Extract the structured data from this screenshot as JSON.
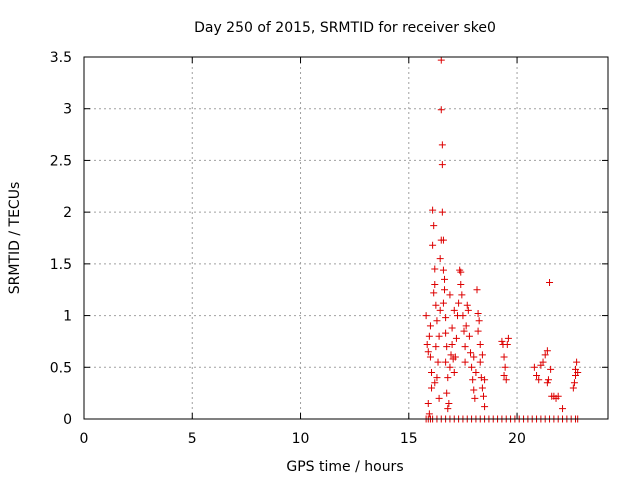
{
  "chart_data": {
    "type": "scatter",
    "title": "Day 250 of 2015, SRMTID for receiver ske0",
    "xlabel": "GPS time / hours",
    "ylabel": "SRMTID / TECUs",
    "xlim": [
      0,
      24.2
    ],
    "ylim": [
      0,
      3.5
    ],
    "grid": true,
    "marker": "+",
    "color": "#dd0000",
    "xticks": [
      {
        "value": 0,
        "label": "0"
      },
      {
        "value": 5,
        "label": "5"
      },
      {
        "value": 10,
        "label": "10"
      },
      {
        "value": 15,
        "label": "15"
      },
      {
        "value": 20,
        "label": "20"
      }
    ],
    "yticks": [
      {
        "value": 0,
        "label": "0"
      },
      {
        "value": 0.5,
        "label": "0.5"
      },
      {
        "value": 1,
        "label": "1"
      },
      {
        "value": 1.5,
        "label": "1.5"
      },
      {
        "value": 2,
        "label": "2"
      },
      {
        "value": 2.5,
        "label": "2.5"
      },
      {
        "value": 3,
        "label": "3"
      },
      {
        "value": 3.5,
        "label": "3.5"
      }
    ],
    "series": [
      {
        "name": "SRMTID",
        "points": [
          [
            15.8,
            1.0
          ],
          [
            15.85,
            0.72
          ],
          [
            15.9,
            0.65
          ],
          [
            15.95,
            0.8
          ],
          [
            16.0,
            0.6
          ],
          [
            16.0,
            0.9
          ],
          [
            16.05,
            0.45
          ],
          [
            16.05,
            0.3
          ],
          [
            15.9,
            0.15
          ],
          [
            15.95,
            0.05
          ],
          [
            16.1,
            2.02
          ],
          [
            16.15,
            1.87
          ],
          [
            16.1,
            1.68
          ],
          [
            16.2,
            1.45
          ],
          [
            16.2,
            1.3
          ],
          [
            16.15,
            1.22
          ],
          [
            16.25,
            1.1
          ],
          [
            16.3,
            0.95
          ],
          [
            16.25,
            0.7
          ],
          [
            16.35,
            0.55
          ],
          [
            16.3,
            0.4
          ],
          [
            16.4,
            0.2
          ],
          [
            16.2,
            0.35
          ],
          [
            16.45,
            1.05
          ],
          [
            16.45,
            1.55
          ],
          [
            16.5,
            3.47
          ],
          [
            16.5,
            2.99
          ],
          [
            16.55,
            2.65
          ],
          [
            16.55,
            2.46
          ],
          [
            16.55,
            2.0
          ],
          [
            16.5,
            1.73
          ],
          [
            16.6,
            1.73
          ],
          [
            16.6,
            1.44
          ],
          [
            16.65,
            1.35
          ],
          [
            16.65,
            1.25
          ],
          [
            16.6,
            1.12
          ],
          [
            16.7,
            0.98
          ],
          [
            16.7,
            0.83
          ],
          [
            16.75,
            0.7
          ],
          [
            16.7,
            0.55
          ],
          [
            16.8,
            0.4
          ],
          [
            16.75,
            0.25
          ],
          [
            16.85,
            0.15
          ],
          [
            16.8,
            0.1
          ],
          [
            16.9,
            0.5
          ],
          [
            16.95,
            0.62
          ],
          [
            17.0,
            0.88
          ],
          [
            17.0,
            0.72
          ],
          [
            17.05,
            0.58
          ],
          [
            17.1,
            0.45
          ],
          [
            17.15,
            0.6
          ],
          [
            17.2,
            0.78
          ],
          [
            17.25,
            1.0
          ],
          [
            17.3,
            1.12
          ],
          [
            17.35,
            1.44
          ],
          [
            17.4,
            1.42
          ],
          [
            17.4,
            1.3
          ],
          [
            17.45,
            1.2
          ],
          [
            17.5,
            1.0
          ],
          [
            17.55,
            0.85
          ],
          [
            17.6,
            0.7
          ],
          [
            17.65,
            0.9
          ],
          [
            17.7,
            1.1
          ],
          [
            17.75,
            1.05
          ],
          [
            17.8,
            0.8
          ],
          [
            17.85,
            0.64
          ],
          [
            17.9,
            0.5
          ],
          [
            17.95,
            0.38
          ],
          [
            18.0,
            0.28
          ],
          [
            18.05,
            0.2
          ],
          [
            18.0,
            0.6
          ],
          [
            18.1,
            0.45
          ],
          [
            18.15,
            1.25
          ],
          [
            18.2,
            0.85
          ],
          [
            18.25,
            0.95
          ],
          [
            18.3,
            0.72
          ],
          [
            18.3,
            0.55
          ],
          [
            18.35,
            0.4
          ],
          [
            18.4,
            0.62
          ],
          [
            18.4,
            0.3
          ],
          [
            18.45,
            0.22
          ],
          [
            18.5,
            0.38
          ],
          [
            18.5,
            0.12
          ],
          [
            18.2,
            1.02
          ],
          [
            17.6,
            0.55
          ],
          [
            16.9,
            1.2
          ],
          [
            17.1,
            1.05
          ],
          [
            16.4,
            0.8
          ],
          [
            19.3,
            0.75
          ],
          [
            19.35,
            0.72
          ],
          [
            19.4,
            0.6
          ],
          [
            19.45,
            0.5
          ],
          [
            19.4,
            0.42
          ],
          [
            19.5,
            0.38
          ],
          [
            19.55,
            0.72
          ],
          [
            19.6,
            0.78
          ],
          [
            20.8,
            0.5
          ],
          [
            20.9,
            0.42
          ],
          [
            21.0,
            0.38
          ],
          [
            21.1,
            0.52
          ],
          [
            21.2,
            0.55
          ],
          [
            21.3,
            0.62
          ],
          [
            21.4,
            0.66
          ],
          [
            21.4,
            0.35
          ],
          [
            21.45,
            0.38
          ],
          [
            21.5,
            1.32
          ],
          [
            21.55,
            0.48
          ],
          [
            21.6,
            0.22
          ],
          [
            21.7,
            0.22
          ],
          [
            21.8,
            0.2
          ],
          [
            21.9,
            0.22
          ],
          [
            22.1,
            0.1
          ],
          [
            22.6,
            0.3
          ],
          [
            22.65,
            0.35
          ],
          [
            22.7,
            0.42
          ],
          [
            22.7,
            0.48
          ],
          [
            22.75,
            0.55
          ],
          [
            22.8,
            0.45
          ],
          [
            15.8,
            0.0
          ],
          [
            15.9,
            0.0
          ],
          [
            16.0,
            0.0
          ],
          [
            16.1,
            0.0
          ],
          [
            16.3,
            0.0
          ],
          [
            16.5,
            0.0
          ],
          [
            16.7,
            0.0
          ],
          [
            16.9,
            0.0
          ],
          [
            17.1,
            0.0
          ],
          [
            17.3,
            0.0
          ],
          [
            17.5,
            0.0
          ],
          [
            17.7,
            0.0
          ],
          [
            17.9,
            0.0
          ],
          [
            18.1,
            0.0
          ],
          [
            18.3,
            0.0
          ],
          [
            18.5,
            0.0
          ],
          [
            18.7,
            0.0
          ],
          [
            18.9,
            0.0
          ],
          [
            19.1,
            0.0
          ],
          [
            19.3,
            0.0
          ],
          [
            19.5,
            0.0
          ],
          [
            19.7,
            0.0
          ],
          [
            19.9,
            0.0
          ],
          [
            20.1,
            0.0
          ],
          [
            20.3,
            0.0
          ],
          [
            20.5,
            0.0
          ],
          [
            20.7,
            0.0
          ],
          [
            20.9,
            0.0
          ],
          [
            21.1,
            0.0
          ],
          [
            21.3,
            0.0
          ],
          [
            21.5,
            0.0
          ],
          [
            21.7,
            0.0
          ],
          [
            21.9,
            0.0
          ],
          [
            22.1,
            0.0
          ],
          [
            22.3,
            0.0
          ],
          [
            22.5,
            0.0
          ],
          [
            22.7,
            0.0
          ],
          [
            22.8,
            0.0
          ]
        ]
      }
    ]
  }
}
